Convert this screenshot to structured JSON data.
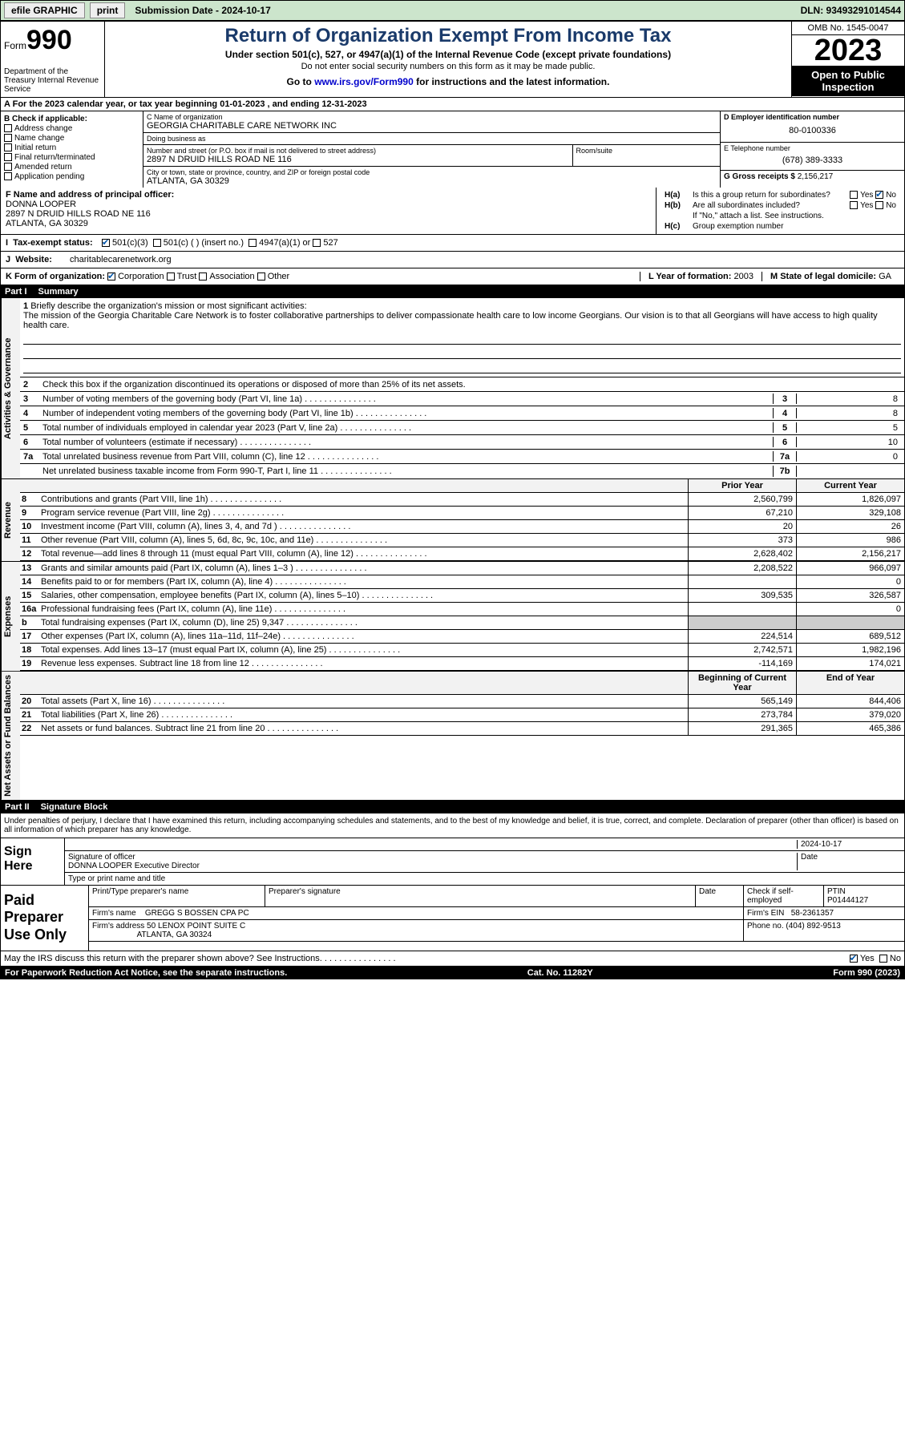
{
  "topbar": {
    "efile": "efile GRAPHIC",
    "print": "print",
    "subdate_lbl": "Submission Date - 2024-10-17",
    "dln": "DLN: 93493291014544"
  },
  "header": {
    "form_word": "Form",
    "form_num": "990",
    "dept": "Department of the Treasury Internal Revenue Service",
    "title": "Return of Organization Exempt From Income Tax",
    "subtitle": "Under section 501(c), 527, or 4947(a)(1) of the Internal Revenue Code (except private foundations)",
    "note": "Do not enter social security numbers on this form as it may be made public.",
    "goto_pre": "Go to ",
    "goto_link": "www.irs.gov/Form990",
    "goto_post": " for instructions and the latest information.",
    "omb": "OMB No. 1545-0047",
    "year": "2023",
    "open": "Open to Public Inspection"
  },
  "period": "For the 2023 calendar year, or tax year beginning 01-01-2023    , and ending 12-31-2023",
  "boxB": {
    "title": "B Check if applicable:",
    "opts": [
      "Address change",
      "Name change",
      "Initial return",
      "Final return/terminated",
      "Amended return",
      "Application pending"
    ]
  },
  "boxC": {
    "name_lbl": "C Name of organization",
    "name": "GEORGIA CHARITABLE CARE NETWORK INC",
    "dba_lbl": "Doing business as",
    "dba": "",
    "street_lbl": "Number and street (or P.O. box if mail is not delivered to street address)",
    "street": "2897 N DRUID HILLS ROAD NE 116",
    "room_lbl": "Room/suite",
    "room": "",
    "city_lbl": "City or town, state or province, country, and ZIP or foreign postal code",
    "city": "ATLANTA, GA  30329"
  },
  "boxD": {
    "ein_lbl": "D Employer identification number",
    "ein": "80-0100336",
    "tel_lbl": "E Telephone number",
    "tel": "(678) 389-3333",
    "gross_lbl": "G Gross receipts $",
    "gross": "2,156,217"
  },
  "boxF": {
    "lbl": "F Name and address of principal officer:",
    "name": "DONNA LOOPER",
    "addr1": "2897 N DRUID HILLS ROAD NE 116",
    "addr2": "ATLANTA, GA  30329"
  },
  "boxH": {
    "a_lbl": "Is this a group return for subordinates?",
    "b_lbl": "Are all subordinates included?",
    "b_note": "If \"No,\" attach a list. See instructions.",
    "c_lbl": "Group exemption number",
    "yes": "Yes",
    "no": "No"
  },
  "taxstatus": {
    "lbl": "Tax-exempt status:",
    "o1": "501(c)(3)",
    "o2": "501(c) (   ) (insert no.)",
    "o3": "4947(a)(1) or",
    "o4": "527"
  },
  "website": {
    "lbl": "Website:",
    "val": "charitablecarenetwork.org"
  },
  "korg": {
    "lbl": "K Form of organization:",
    "opts": [
      "Corporation",
      "Trust",
      "Association",
      "Other"
    ],
    "year_lbl": "L Year of formation:",
    "year": "2003",
    "state_lbl": "M State of legal domicile:",
    "state": "GA"
  },
  "parts": {
    "p1": "Part I",
    "p1t": "Summary",
    "p2": "Part II",
    "p2t": "Signature Block"
  },
  "vtabs": {
    "ag": "Activities & Governance",
    "rev": "Revenue",
    "exp": "Expenses",
    "na": "Net Assets or Fund Balances"
  },
  "mission": {
    "lbl": "Briefly describe the organization's mission or most significant activities:",
    "txt": "The mission of the Georgia Charitable Care Network is to foster collaborative partnerships to deliver compassionate health care to low income Georgians. Our vision is to that all Georgians will have access to high quality health care."
  },
  "lines_ag": {
    "l2": "Check this box      if the organization discontinued its operations or disposed of more than 25% of its net assets.",
    "l3": "Number of voting members of the governing body (Part VI, line 1a)",
    "l4": "Number of independent voting members of the governing body (Part VI, line 1b)",
    "l5": "Total number of individuals employed in calendar year 2023 (Part V, line 2a)",
    "l6": "Total number of volunteers (estimate if necessary)",
    "l7a": "Total unrelated business revenue from Part VIII, column (C), line 12",
    "l7b": "Net unrelated business taxable income from Form 990-T, Part I, line 11",
    "v3": "8",
    "v4": "8",
    "v5": "5",
    "v6": "10",
    "v7a": "0",
    "v7b": ""
  },
  "cols": {
    "prior": "Prior Year",
    "current": "Current Year",
    "begin": "Beginning of Current Year",
    "end": "End of Year"
  },
  "rev": [
    {
      "n": "8",
      "t": "Contributions and grants (Part VIII, line 1h)",
      "p": "2,560,799",
      "c": "1,826,097"
    },
    {
      "n": "9",
      "t": "Program service revenue (Part VIII, line 2g)",
      "p": "67,210",
      "c": "329,108"
    },
    {
      "n": "10",
      "t": "Investment income (Part VIII, column (A), lines 3, 4, and 7d )",
      "p": "20",
      "c": "26"
    },
    {
      "n": "11",
      "t": "Other revenue (Part VIII, column (A), lines 5, 6d, 8c, 9c, 10c, and 11e)",
      "p": "373",
      "c": "986"
    },
    {
      "n": "12",
      "t": "Total revenue—add lines 8 through 11 (must equal Part VIII, column (A), line 12)",
      "p": "2,628,402",
      "c": "2,156,217"
    }
  ],
  "exp": [
    {
      "n": "13",
      "t": "Grants and similar amounts paid (Part IX, column (A), lines 1–3 )",
      "p": "2,208,522",
      "c": "966,097"
    },
    {
      "n": "14",
      "t": "Benefits paid to or for members (Part IX, column (A), line 4)",
      "p": "",
      "c": "0"
    },
    {
      "n": "15",
      "t": "Salaries, other compensation, employee benefits (Part IX, column (A), lines 5–10)",
      "p": "309,535",
      "c": "326,587"
    },
    {
      "n": "16a",
      "t": "Professional fundraising fees (Part IX, column (A), line 11e)",
      "p": "",
      "c": "0"
    },
    {
      "n": "b",
      "t": "Total fundraising expenses (Part IX, column (D), line 25) 9,347",
      "p": "grey",
      "c": "grey"
    },
    {
      "n": "17",
      "t": "Other expenses (Part IX, column (A), lines 11a–11d, 11f–24e)",
      "p": "224,514",
      "c": "689,512"
    },
    {
      "n": "18",
      "t": "Total expenses. Add lines 13–17 (must equal Part IX, column (A), line 25)",
      "p": "2,742,571",
      "c": "1,982,196"
    },
    {
      "n": "19",
      "t": "Revenue less expenses. Subtract line 18 from line 12",
      "p": "-114,169",
      "c": "174,021"
    }
  ],
  "na": [
    {
      "n": "20",
      "t": "Total assets (Part X, line 16)",
      "p": "565,149",
      "c": "844,406"
    },
    {
      "n": "21",
      "t": "Total liabilities (Part X, line 26)",
      "p": "273,784",
      "c": "379,020"
    },
    {
      "n": "22",
      "t": "Net assets or fund balances. Subtract line 21 from line 20",
      "p": "291,365",
      "c": "465,386"
    }
  ],
  "sig": {
    "decl": "Under penalties of perjury, I declare that I have examined this return, including accompanying schedules and statements, and to the best of my knowledge and belief, it is true, correct, and complete. Declaration of preparer (other than officer) is based on all information of which preparer has any knowledge.",
    "sign_here": "Sign Here",
    "sig_officer": "Signature of officer",
    "sig_name": "DONNA LOOPER  Executive Director",
    "type_name": "Type or print name and title",
    "date_lbl": "Date",
    "date": "2024-10-17"
  },
  "prep": {
    "lbl": "Paid Preparer Use Only",
    "h1": "Print/Type preparer's name",
    "h2": "Preparer's signature",
    "h3": "Date",
    "h4": "Check      if self-employed",
    "h5": "PTIN",
    "ptin": "P01444127",
    "firm_lbl": "Firm's name",
    "firm": "GREGG S BOSSEN CPA PC",
    "fein_lbl": "Firm's EIN",
    "fein": "58-2361357",
    "addr_lbl": "Firm's address",
    "addr1": "50 LENOX POINT SUITE C",
    "addr2": "ATLANTA, GA  30324",
    "phone_lbl": "Phone no.",
    "phone": "(404) 892-9513"
  },
  "discuss": {
    "txt": "May the IRS discuss this return with the preparer shown above? See Instructions.",
    "yes": "Yes",
    "no": "No"
  },
  "footer": {
    "left": "For Paperwork Reduction Act Notice, see the separate instructions.",
    "mid": "Cat. No. 11282Y",
    "right": "Form 990 (2023)"
  }
}
